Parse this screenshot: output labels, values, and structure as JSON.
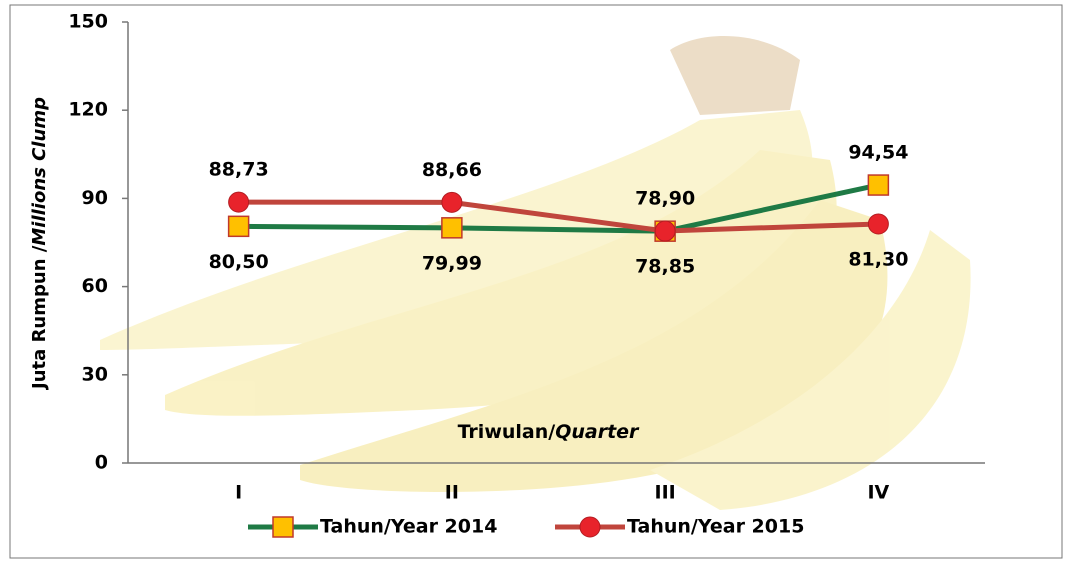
{
  "chart_data": {
    "type": "line",
    "ylabel": [
      "Juta Rumpun /",
      "Millions Clump"
    ],
    "xlabel": [
      "Triwulan/",
      "Quarter"
    ],
    "categories": [
      "I",
      "II",
      "III",
      "IV"
    ],
    "series": [
      {
        "name": "Tahun/Year 2014",
        "color": "#1f7a45",
        "marker": "square",
        "marker_color": "#ffc000",
        "values": [
          80.5,
          79.99,
          78.85,
          94.54
        ],
        "value_labels": [
          "80,50",
          "79,99",
          "78,85",
          "94,54"
        ]
      },
      {
        "name": "Tahun/Year 2015",
        "color": "#c0453c",
        "marker": "circle",
        "marker_color": "#e8232b",
        "values": [
          88.73,
          88.66,
          78.9,
          81.3
        ],
        "value_labels": [
          "88,73",
          "88,66",
          "78,90",
          "81,30"
        ]
      }
    ],
    "ylim": [
      0,
      150
    ],
    "yticks": [
      0,
      30,
      60,
      90,
      120,
      150
    ],
    "grid": false,
    "legend": "bottom"
  }
}
